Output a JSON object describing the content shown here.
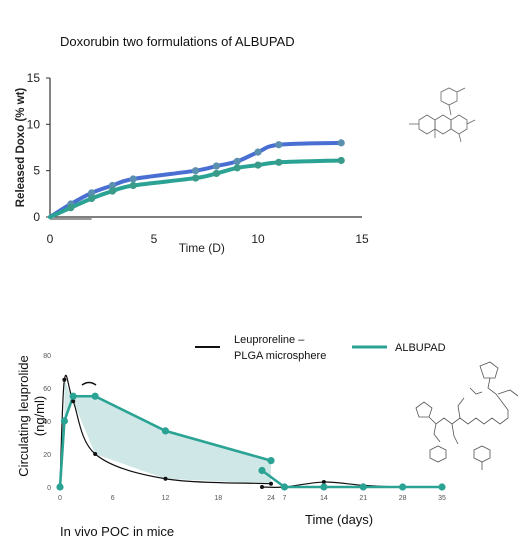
{
  "slide": {
    "title": "Doxorubin two formulations of ALBUPAD",
    "caption": "In vivo POC in mice"
  },
  "colors": {
    "blue": "#4a6fd3",
    "teal": "#2aa394",
    "dark": "#111111",
    "fill": "#cfe7e6"
  },
  "chart_data": [
    {
      "type": "line",
      "ylabel": "Released Doxo (% wt)",
      "xlabel": "Time (D)",
      "xlim": [
        0,
        15
      ],
      "ylim": [
        0,
        15
      ],
      "xticks": [
        0,
        5,
        10,
        15
      ],
      "yticks": [
        0,
        5,
        10,
        15
      ],
      "series": [
        {
          "color": "#4a6fd3",
          "x": [
            0,
            1,
            2,
            3,
            4,
            7,
            8,
            9,
            10,
            11,
            14
          ],
          "y": [
            0,
            1.4,
            2.6,
            3.4,
            4.1,
            5.0,
            5.5,
            6.0,
            7.0,
            7.8,
            8.0
          ]
        },
        {
          "color": "#2aa394",
          "x": [
            0,
            1,
            2,
            3,
            4,
            7,
            8,
            9,
            10,
            11,
            14
          ],
          "y": [
            0,
            1.0,
            2.0,
            2.8,
            3.4,
            4.2,
            4.7,
            5.3,
            5.6,
            5.9,
            6.1
          ]
        }
      ]
    },
    {
      "type": "line",
      "ylabel": "Circulating leuprolide (ng/ml)",
      "xlabel": "Time (days)",
      "ylim": [
        0,
        80
      ],
      "yticks": [
        0,
        20,
        40,
        60,
        80
      ],
      "xticks_hours": [
        0,
        6,
        12,
        18,
        24
      ],
      "xticks_days": [
        7,
        14,
        21,
        28,
        35
      ],
      "series": [
        {
          "name": "Leuproreline – PLGA microsphere",
          "color": "#111111",
          "points": [
            {
              "u": "h",
              "t": 0,
              "y": 0
            },
            {
              "u": "h",
              "t": 0.5,
              "y": 65
            },
            {
              "u": "h",
              "t": 1.5,
              "y": 52
            },
            {
              "u": "h",
              "t": 4,
              "y": 20
            },
            {
              "u": "h",
              "t": 12,
              "y": 5
            },
            {
              "u": "h",
              "t": 24,
              "y": 2
            },
            {
              "u": "d",
              "t": 3,
              "y": 0
            },
            {
              "u": "d",
              "t": 7,
              "y": 0
            },
            {
              "u": "d",
              "t": 14,
              "y": 3
            },
            {
              "u": "d",
              "t": 21,
              "y": 1
            },
            {
              "u": "d",
              "t": 28,
              "y": 0
            },
            {
              "u": "d",
              "t": 35,
              "y": 0
            }
          ]
        },
        {
          "name": "ALBUPAD",
          "color": "#2aa394",
          "points": [
            {
              "u": "h",
              "t": 0,
              "y": 0
            },
            {
              "u": "h",
              "t": 0.5,
              "y": 40
            },
            {
              "u": "h",
              "t": 1.5,
              "y": 55
            },
            {
              "u": "h",
              "t": 4,
              "y": 55
            },
            {
              "u": "h",
              "t": 12,
              "y": 34
            },
            {
              "u": "h",
              "t": 24,
              "y": 16
            },
            {
              "u": "d",
              "t": 3,
              "y": 10
            },
            {
              "u": "d",
              "t": 7,
              "y": 0
            },
            {
              "u": "d",
              "t": 14,
              "y": 0
            },
            {
              "u": "d",
              "t": 21,
              "y": 0
            },
            {
              "u": "d",
              "t": 28,
              "y": 0
            },
            {
              "u": "d",
              "t": 35,
              "y": 0
            }
          ]
        }
      ]
    }
  ],
  "icons": {
    "top": "doxorubicin-structure-icon",
    "bottom": "leuprolide-structure-icon"
  }
}
